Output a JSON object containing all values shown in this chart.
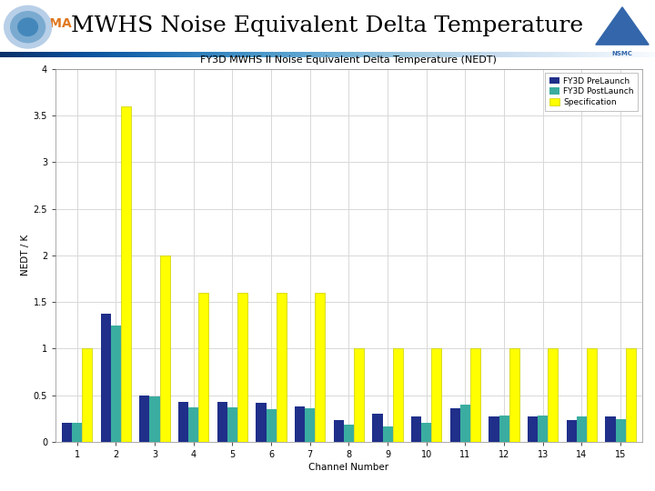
{
  "title": "FY3D MWHS II Noise Equivalent Delta Temperature (NEDT)",
  "xlabel": "Channel Number",
  "ylabel": "NEDT / K",
  "channels": [
    1,
    2,
    3,
    4,
    5,
    6,
    7,
    8,
    9,
    10,
    11,
    12,
    13,
    14,
    15
  ],
  "pre_launch": [
    0.2,
    1.37,
    0.5,
    0.43,
    0.43,
    0.42,
    0.38,
    0.23,
    0.3,
    0.27,
    0.36,
    0.27,
    0.27,
    0.23,
    0.27
  ],
  "post_launch": [
    0.2,
    1.25,
    0.49,
    0.37,
    0.37,
    0.35,
    0.36,
    0.19,
    0.17,
    0.2,
    0.4,
    0.28,
    0.28,
    0.27,
    0.24
  ],
  "specification": [
    1.0,
    3.6,
    2.0,
    1.6,
    1.6,
    1.6,
    1.6,
    1.0,
    1.0,
    1.0,
    1.0,
    1.0,
    1.0,
    1.0,
    1.0
  ],
  "color_pre": "#1f2f8a",
  "color_post": "#3aada0",
  "color_spec": "#ffff00",
  "ylim": [
    0,
    4.0
  ],
  "yticks": [
    0,
    0.5,
    1.0,
    1.5,
    2.0,
    2.5,
    3.0,
    3.5,
    4.0
  ],
  "ytick_labels": [
    "0",
    "0.5",
    "1",
    "1.5",
    "2",
    "2.5",
    "3",
    "3.5",
    "4"
  ],
  "legend_labels": [
    "FY3D PreLaunch",
    "FY3D PostLaunch",
    "Specification"
  ],
  "bg_color": "#ffffff",
  "plot_bg_color": "#ffffff",
  "header_title": "MWHS Noise Equivalent Delta Temperature",
  "header_bg": "#ffffff",
  "grid_color": "#d8d8d8",
  "bar_edge_color": "none"
}
